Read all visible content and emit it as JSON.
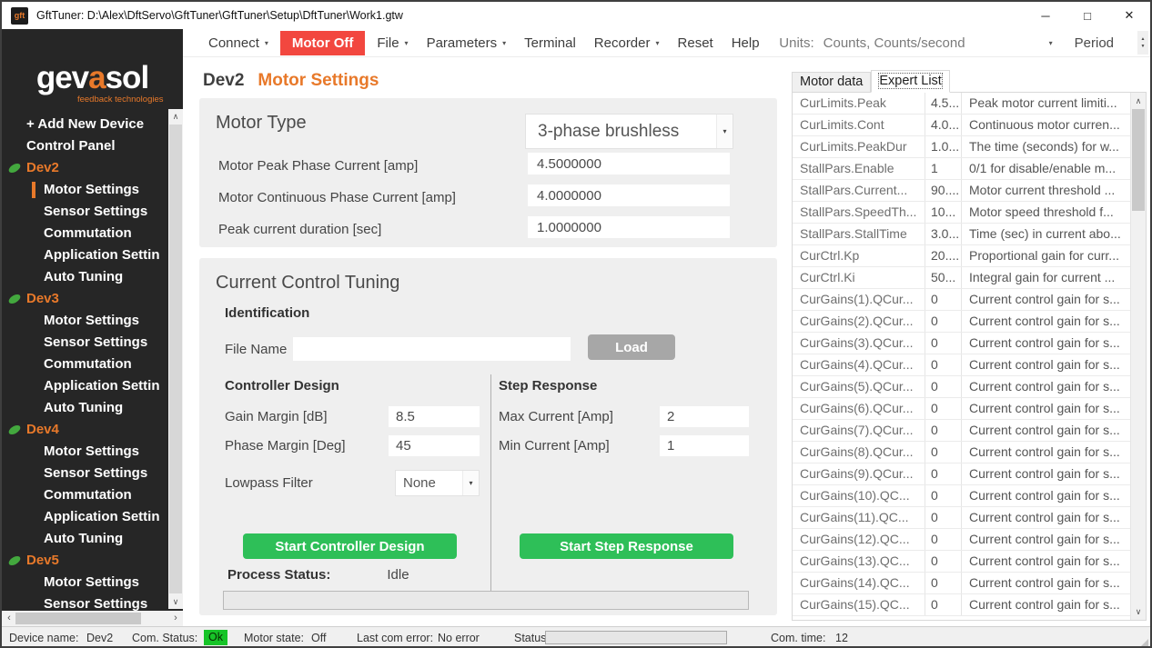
{
  "window": {
    "title": "GftTuner: D:\\Alex\\DftServo\\GftTuner\\GftTuner\\Setup\\DftTuner\\Work1.gtw",
    "app_icon_text": "gft",
    "controls": {
      "minimize": "─",
      "maximize": "□",
      "close": "✕"
    }
  },
  "icons": {
    "caret_down": "▾",
    "scroll_up": "∧",
    "scroll_down": "∨",
    "scroll_left": "‹",
    "scroll_right": "›",
    "spinner_up": "▲",
    "spinner_down": "▼"
  },
  "colors": {
    "accent_orange": "#e8792a",
    "danger_red": "#f2473f",
    "action_green": "#2ebf58",
    "ok_badge_green": "#17c428",
    "device_leaf_green": "#43a83e",
    "sidebar_bg": "#262626"
  },
  "menubar": {
    "items": [
      {
        "label": "Connect",
        "caret": true
      },
      {
        "label": "Motor Off",
        "style": "danger"
      },
      {
        "label": "File",
        "caret": true
      },
      {
        "label": "Parameters",
        "caret": true
      },
      {
        "label": "Terminal"
      },
      {
        "label": "Recorder",
        "caret": true
      },
      {
        "label": "Reset"
      },
      {
        "label": "Help"
      }
    ],
    "units_label": "Units:",
    "units_value": "Counts, Counts/second",
    "period_label": "Period"
  },
  "sidebar": {
    "logo": {
      "part1": "gev",
      "part2": "a",
      "part3": "sol",
      "tagline": "feedback technologies"
    },
    "top_items": [
      "+ Add New Device",
      "Control Panel"
    ],
    "selected_device": "Dev2",
    "selected_item": "Motor Settings",
    "devices": [
      {
        "name": "Dev2",
        "children": [
          "Motor Settings",
          "Sensor Settings",
          "Commutation",
          "Application Settin",
          "Auto Tuning"
        ]
      },
      {
        "name": "Dev3",
        "children": [
          "Motor Settings",
          "Sensor Settings",
          "Commutation",
          "Application Settin",
          "Auto Tuning"
        ]
      },
      {
        "name": "Dev4",
        "children": [
          "Motor Settings",
          "Sensor Settings",
          "Commutation",
          "Application Settin",
          "Auto Tuning"
        ]
      },
      {
        "name": "Dev5",
        "children": [
          "Motor Settings",
          "Sensor Settings"
        ]
      }
    ]
  },
  "main": {
    "device": "Dev2",
    "page_title": "Motor Settings",
    "motor_type": {
      "title": "Motor Type",
      "dropdown_value": "3-phase brushless",
      "fields": [
        {
          "label": "Motor Peak Phase Current [amp]",
          "value": "4.5000000"
        },
        {
          "label": "Motor Continuous Phase Current [amp]",
          "value": "4.0000000"
        },
        {
          "label": "Peak current duration [sec]",
          "value": "1.0000000"
        }
      ]
    },
    "tuning": {
      "title": "Current Control Tuning",
      "identification_label": "Identification",
      "file_name_label": "File Name",
      "file_name_value": "",
      "load_button": "Load",
      "controller_design": {
        "title": "Controller Design",
        "fields": [
          {
            "label": "Gain Margin [dB]",
            "value": "8.5"
          },
          {
            "label": "Phase Margin [Deg]",
            "value": "45"
          }
        ],
        "lowpass_label": "Lowpass Filter",
        "lowpass_value": "None",
        "start_button": "Start Controller Design"
      },
      "step_response": {
        "title": "Step Response",
        "fields": [
          {
            "label": "Max Current [Amp]",
            "value": "2"
          },
          {
            "label": "Min Current [Amp]",
            "value": "1"
          }
        ],
        "start_button": "Start Step Response"
      },
      "process_status_label": "Process Status:",
      "process_status_value": "Idle"
    }
  },
  "expert_panel": {
    "tabs": [
      "Motor data",
      "Expert List"
    ],
    "active_tab": "Expert List",
    "rows": [
      {
        "name": "CurLimits.Peak",
        "value": "4.5...",
        "desc": "Peak motor current limiti..."
      },
      {
        "name": "CurLimits.Cont",
        "value": "4.0...",
        "desc": "Continuous motor curren..."
      },
      {
        "name": "CurLimits.PeakDur",
        "value": "1.0...",
        "desc": "The time (seconds) for w..."
      },
      {
        "name": "StallPars.Enable",
        "value": "1",
        "desc": "0/1 for disable/enable m..."
      },
      {
        "name": "StallPars.Current...",
        "value": "90....",
        "desc": "Motor current threshold ..."
      },
      {
        "name": "StallPars.SpeedTh...",
        "value": "10...",
        "desc": "Motor speed threshold f..."
      },
      {
        "name": "StallPars.StallTime",
        "value": "3.0...",
        "desc": "Time (sec) in current abo..."
      },
      {
        "name": "CurCtrl.Kp",
        "value": "20....",
        "desc": "Proportional gain for curr..."
      },
      {
        "name": "CurCtrl.Ki",
        "value": "50...",
        "desc": "Integral gain for current ..."
      },
      {
        "name": "CurGains(1).QCur...",
        "value": "0",
        "desc": "Current control gain for s..."
      },
      {
        "name": "CurGains(2).QCur...",
        "value": "0",
        "desc": "Current control gain for s..."
      },
      {
        "name": "CurGains(3).QCur...",
        "value": "0",
        "desc": "Current control gain for s..."
      },
      {
        "name": "CurGains(4).QCur...",
        "value": "0",
        "desc": "Current control gain for s..."
      },
      {
        "name": "CurGains(5).QCur...",
        "value": "0",
        "desc": "Current control gain for s..."
      },
      {
        "name": "CurGains(6).QCur...",
        "value": "0",
        "desc": "Current control gain for s..."
      },
      {
        "name": "CurGains(7).QCur...",
        "value": "0",
        "desc": "Current control gain for s..."
      },
      {
        "name": "CurGains(8).QCur...",
        "value": "0",
        "desc": "Current control gain for s..."
      },
      {
        "name": "CurGains(9).QCur...",
        "value": "0",
        "desc": "Current control gain for s..."
      },
      {
        "name": "CurGains(10).QC...",
        "value": "0",
        "desc": "Current control gain for s..."
      },
      {
        "name": "CurGains(11).QC...",
        "value": "0",
        "desc": "Current control gain for s..."
      },
      {
        "name": "CurGains(12).QC...",
        "value": "0",
        "desc": "Current control gain for s..."
      },
      {
        "name": "CurGains(13).QC...",
        "value": "0",
        "desc": "Current control gain for s..."
      },
      {
        "name": "CurGains(14).QC...",
        "value": "0",
        "desc": "Current control gain for s..."
      },
      {
        "name": "CurGains(15).QC...",
        "value": "0",
        "desc": "Current control gain for s..."
      }
    ]
  },
  "statusbar": {
    "device_name_label": "Device name:",
    "device_name_value": "Dev2",
    "com_status_label": "Com. Status:",
    "com_status_value": "Ok",
    "motor_state_label": "Motor state:",
    "motor_state_value": "Off",
    "last_com_error_label": "Last com error:",
    "last_com_error_value": "No error",
    "status_label": "Status",
    "com_time_label": "Com. time:",
    "com_time_value": "12"
  }
}
